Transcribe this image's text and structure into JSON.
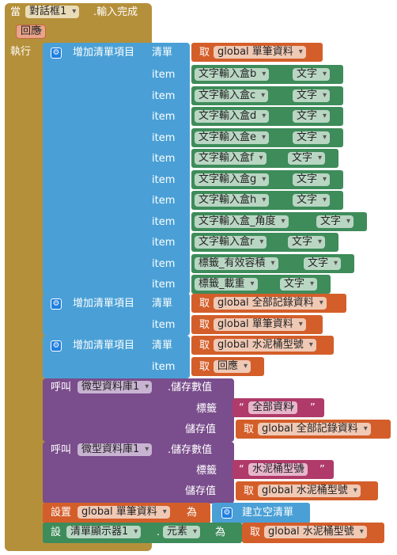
{
  "colors": {
    "event": "#b5903a",
    "list": "#4aa0d6",
    "var": "#d45e2a",
    "component": "#3e8c5a",
    "db": "#7a4d8c",
    "text": "#b03a6a"
  },
  "event": {
    "when": "當",
    "component": "對話框1",
    "event_name": ".輸入完成",
    "param": "回應",
    "do": "執行"
  },
  "add_items_1": {
    "label": "增加清單項目",
    "list_label": "清單",
    "get": "取",
    "var": "global 單筆資料",
    "items": [
      {
        "label": "item",
        "component": "文字輸入盒b",
        "prop": "文字"
      },
      {
        "label": "item",
        "component": "文字輸入盒c",
        "prop": "文字"
      },
      {
        "label": "item",
        "component": "文字輸入盒d",
        "prop": "文字"
      },
      {
        "label": "item",
        "component": "文字輸入盒e",
        "prop": "文字"
      },
      {
        "label": "item",
        "component": "文字輸入盒f",
        "prop": "文字"
      },
      {
        "label": "item",
        "component": "文字輸入盒g",
        "prop": "文字"
      },
      {
        "label": "item",
        "component": "文字輸入盒h",
        "prop": "文字"
      },
      {
        "label": "item",
        "component": "文字輸入盒_角度",
        "prop": "文字"
      },
      {
        "label": "item",
        "component": "文字輸入盒r",
        "prop": "文字"
      },
      {
        "label": "item",
        "component": "標籤_有效容積",
        "prop": "文字"
      },
      {
        "label": "item",
        "component": "標籤_載重",
        "prop": "文字"
      }
    ]
  },
  "add_items_2": {
    "label": "增加清單項目",
    "list_label": "清單",
    "get": "取",
    "var": "global 全部記錄資料",
    "item_label": "item",
    "item_var": "global 單筆資料"
  },
  "add_items_3": {
    "label": "增加清單項目",
    "list_label": "清單",
    "get": "取",
    "var": "global 水泥桶型號",
    "item_label": "item",
    "item_var": "回應"
  },
  "store_1": {
    "call": "呼叫",
    "component": "微型資料庫1",
    "method": ".儲存數值",
    "tag_label": "標籤",
    "tag_value": "全部資料",
    "value_label": "儲存值",
    "get": "取",
    "value_var": "global 全部記錄資料"
  },
  "store_2": {
    "call": "呼叫",
    "component": "微型資料庫1",
    "method": ".儲存數值",
    "tag_label": "標籤",
    "tag_value": "水泥桶型號",
    "value_label": "儲存值",
    "get": "取",
    "value_var": "global 水泥桶型號"
  },
  "set_var": {
    "set": "設置",
    "var": "global 單筆資料",
    "to": "為",
    "value": "建立空清單"
  },
  "set_prop": {
    "set": "設",
    "component": "清單顯示器1",
    "dot": ".",
    "prop": "元素",
    "to": "為",
    "get": "取",
    "value_var": "global 水泥桶型號"
  }
}
